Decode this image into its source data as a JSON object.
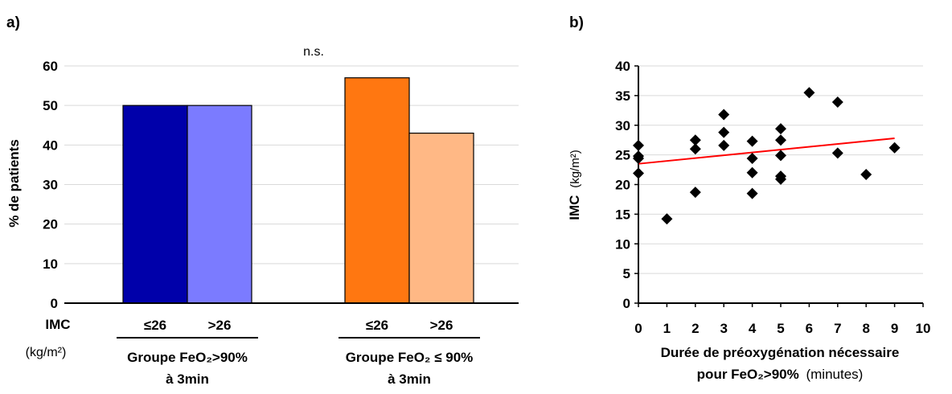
{
  "chart_data": [
    {
      "id": "a",
      "type": "bar",
      "panel_label": "a)",
      "annotation": "n.s.",
      "ylabel": "% de patients",
      "ylim": [
        0,
        60
      ],
      "yticks": [
        0,
        10,
        20,
        30,
        40,
        50,
        60
      ],
      "grid": true,
      "x_prefix": "IMC",
      "x_prefix_unit": "(kg/m²)",
      "groups": [
        {
          "label_line1": "Groupe FeO₂>90%",
          "label_line2": "à 3min",
          "bars": [
            {
              "category": "≤26",
              "value": 50,
              "color": "#0000aa"
            },
            {
              "category": ">26",
              "value": 50,
              "color": "#7b7bff"
            }
          ]
        },
        {
          "label_line1": "Groupe FeO₂ ≤ 90%",
          "label_line2": "à 3min",
          "bars": [
            {
              "category": "≤26",
              "value": 57,
              "color": "#ff7711"
            },
            {
              "category": ">26",
              "value": 43,
              "color": "#ffb885"
            }
          ]
        }
      ]
    },
    {
      "id": "b",
      "type": "scatter",
      "panel_label": "b)",
      "ylabel_main": "IMC",
      "ylabel_unit": "(kg/m²)",
      "xlabel_line1": "Durée de préoxygénation nécessaire",
      "xlabel_line2_bold": "pour FeO₂>90%",
      "xlabel_line2_normal": "(minutes)",
      "xlim": [
        0,
        10
      ],
      "ylim": [
        0,
        40
      ],
      "xticks": [
        0,
        1,
        2,
        3,
        4,
        5,
        6,
        7,
        8,
        9,
        10
      ],
      "yticks": [
        0,
        5,
        10,
        15,
        20,
        25,
        30,
        35,
        40
      ],
      "grid": true,
      "marker_color": "#000000",
      "trendline": {
        "x": [
          0,
          9
        ],
        "y": [
          23.5,
          27.8
        ],
        "color": "#ff0000"
      },
      "points": [
        {
          "x": 0,
          "y": 26.6
        },
        {
          "x": 0,
          "y": 24.8
        },
        {
          "x": 0,
          "y": 24.4
        },
        {
          "x": 0,
          "y": 21.9
        },
        {
          "x": 1,
          "y": 14.2
        },
        {
          "x": 2,
          "y": 27.5
        },
        {
          "x": 2,
          "y": 26.0
        },
        {
          "x": 2,
          "y": 18.7
        },
        {
          "x": 3,
          "y": 31.8
        },
        {
          "x": 3,
          "y": 28.8
        },
        {
          "x": 3,
          "y": 26.6
        },
        {
          "x": 4,
          "y": 27.3
        },
        {
          "x": 4,
          "y": 24.4
        },
        {
          "x": 4,
          "y": 22.0
        },
        {
          "x": 4,
          "y": 18.5
        },
        {
          "x": 5,
          "y": 29.4
        },
        {
          "x": 5,
          "y": 27.5
        },
        {
          "x": 5,
          "y": 24.9
        },
        {
          "x": 5,
          "y": 21.4
        },
        {
          "x": 5,
          "y": 20.9
        },
        {
          "x": 6,
          "y": 35.5
        },
        {
          "x": 7,
          "y": 33.9
        },
        {
          "x": 7,
          "y": 25.3
        },
        {
          "x": 8,
          "y": 21.7
        },
        {
          "x": 9,
          "y": 26.2
        }
      ]
    }
  ]
}
